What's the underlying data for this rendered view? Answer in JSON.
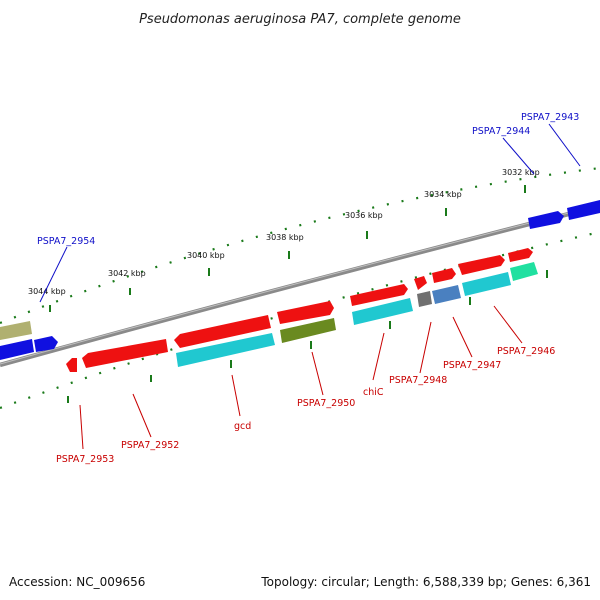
{
  "title": "Pseudomonas aeruginosa PA7, complete genome",
  "footer": {
    "accession": "Accession: NC_009656",
    "summary": "Topology: circular; Length: 6,588,339 bp; Genes: 6,361"
  },
  "ticks": [
    "3044 kbp",
    "3042 kbp",
    "3040 kbp",
    "3038 kbp",
    "3036 kbp",
    "3034 kbp",
    "3032 kbp"
  ],
  "labels": {
    "PSPA7_2943": "PSPA7_2943",
    "PSPA7_2944": "PSPA7_2944",
    "PSPA7_2954": "PSPA7_2954",
    "PSPA7_2946": "PSPA7_2946",
    "PSPA7_2947": "PSPA7_2947",
    "PSPA7_2948": "PSPA7_2948",
    "chiC": "chiC",
    "PSPA7_2950": "PSPA7_2950",
    "gcd": "gcd",
    "PSPA7_2952": "PSPA7_2952",
    "PSPA7_2953": "PSPA7_2953"
  },
  "colors": {
    "backbone": "#7a7a7a",
    "tick": "#1a7a1a",
    "red": "#ee1111",
    "blue": "#1010e0",
    "cyan": "#20c8d0",
    "olive": "#6a8a20",
    "khaki": "#b0b070",
    "steel": "#4a80c0",
    "grey": "#707070",
    "mint": "#20e0a0"
  }
}
